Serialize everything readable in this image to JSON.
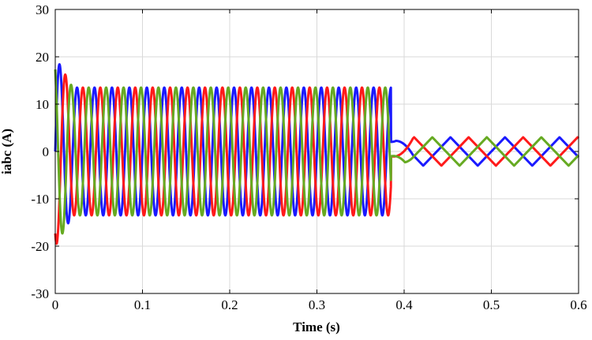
{
  "chart_data": {
    "type": "line",
    "title": "",
    "xlabel": "Time (s)",
    "ylabel": "iabc (A)",
    "xlim": [
      0,
      0.6
    ],
    "ylim": [
      -30,
      30
    ],
    "xticks": [
      0,
      0.1,
      0.2,
      0.3,
      0.4,
      0.5,
      0.6
    ],
    "xtick_labels": [
      "0",
      "0.1",
      "0.2",
      "0.3",
      "0.4",
      "0.5",
      "0.6"
    ],
    "yticks": [
      -30,
      -20,
      -10,
      0,
      10,
      20,
      30
    ],
    "ytick_labels": [
      "-30",
      "-20",
      "-10",
      "0",
      "10",
      "20",
      "30"
    ],
    "grid": true,
    "legend": "none",
    "signal": {
      "frequency_hz": 50,
      "fault_time_s": 0.385,
      "amplitude_before_fault_A": 13.5,
      "amplitude_after_fault_A": 3,
      "startup_peak_A": 20
    },
    "series": [
      {
        "phase_deg": 0,
        "color": "#1a1aff"
      },
      {
        "phase_deg": -120,
        "color": "#ff1a1a"
      },
      {
        "phase_deg": 120,
        "color": "#66aa22"
      }
    ]
  }
}
